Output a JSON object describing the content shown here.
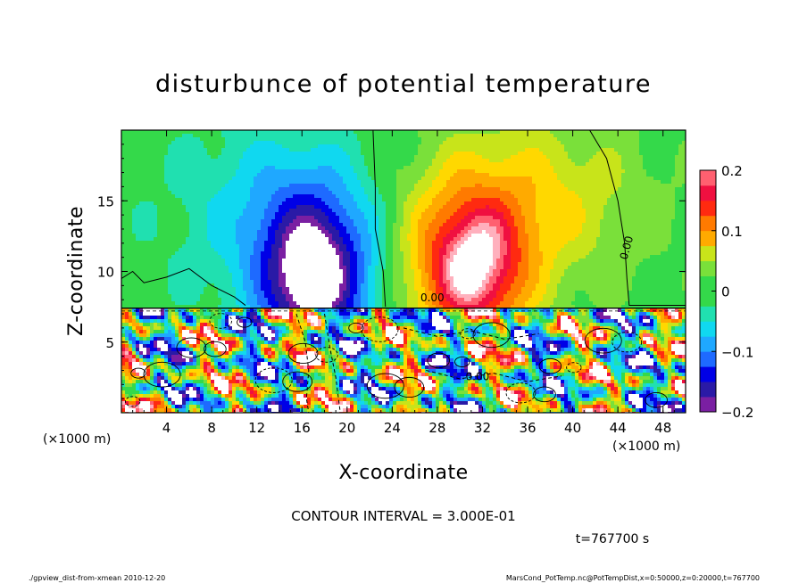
{
  "chart_data": {
    "type": "heatmap",
    "title": "disturbunce of potential temperature",
    "xlabel": "X-coordinate",
    "ylabel": "Z-coordinate",
    "x_unit_left": "(×1000 m)",
    "x_unit_right": "(×1000 m)",
    "xlim": [
      0,
      50
    ],
    "ylim": [
      0,
      20
    ],
    "x_ticks": [
      4,
      8,
      12,
      16,
      20,
      24,
      28,
      32,
      36,
      40,
      44,
      48
    ],
    "y_ticks": [
      5,
      10,
      15
    ],
    "colorbar": {
      "range": [
        -0.2,
        0.2
      ],
      "ticks": [
        {
          "value": 0.2,
          "label": "0.2"
        },
        {
          "value": 0.1,
          "label": "0.1"
        },
        {
          "value": 0,
          "label": "0"
        },
        {
          "value": -0.1,
          "label": "−0.1"
        },
        {
          "value": -0.2,
          "label": "−0.2"
        }
      ]
    },
    "features": [
      {
        "kind": "cold-plume",
        "x": 17,
        "z": 9.5,
        "amplitude": -0.24,
        "width": 4.5,
        "height": 5.5
      },
      {
        "kind": "warm-plume",
        "x": 31,
        "z": 10,
        "amplitude": 0.2,
        "width": 5,
        "height": 5.5
      },
      {
        "kind": "cool-band",
        "x": 14,
        "z": 14,
        "amplitude": -0.06,
        "width": 8,
        "height": 6
      },
      {
        "kind": "warm-band",
        "x": 36,
        "z": 15,
        "amplitude": 0.07,
        "width": 10,
        "height": 6
      }
    ],
    "contour_labels": [
      "0.00",
      "0.00",
      "0.00"
    ],
    "contour_interval_text": "CONTOUR INTERVAL = 3.000E-01",
    "time_text": "t=767700 s"
  },
  "footer": {
    "left": "./gpview_dist-from-xmean 2010-12-20",
    "right": "MarsCond_PotTemp.nc@PotTempDist,x=0:50000,z=0:20000,t=767700"
  }
}
